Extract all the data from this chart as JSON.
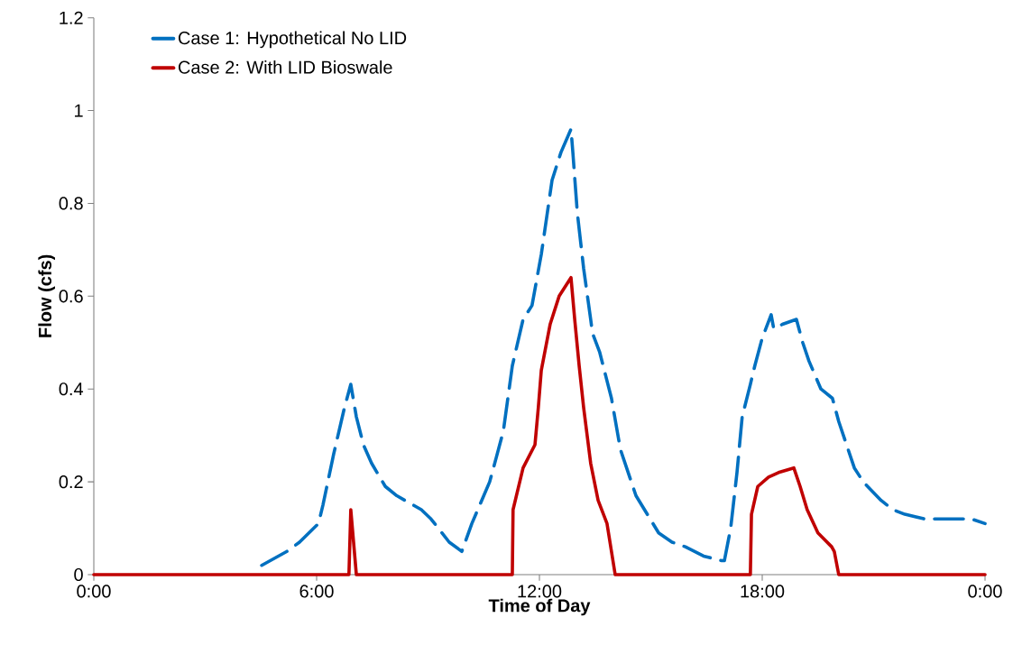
{
  "chart_data": {
    "type": "line",
    "xlabel": "Time of Day",
    "ylabel": "Flow (cfs)",
    "xlim": [
      0,
      24
    ],
    "ylim": [
      0,
      1.2
    ],
    "xticks": [
      {
        "value": 0,
        "label": "0:00"
      },
      {
        "value": 6,
        "label": "6:00"
      },
      {
        "value": 12,
        "label": "12:00"
      },
      {
        "value": 18,
        "label": "18:00"
      },
      {
        "value": 24,
        "label": "0:00"
      }
    ],
    "yticks": [
      0,
      0.2,
      0.4,
      0.6,
      0.8,
      1,
      1.2
    ],
    "grid": false,
    "legend": "top left",
    "marker": "none",
    "series": [
      {
        "name": "Case 1: Hypothetical No LID",
        "color": "#0070c0",
        "line_style": "dashed",
        "x": [
          4.52,
          5.2,
          5.54,
          6.05,
          6.17,
          6.46,
          6.75,
          6.92,
          7.07,
          7.26,
          7.48,
          7.85,
          8.16,
          8.82,
          9.08,
          9.57,
          9.91,
          10.18,
          10.66,
          10.83,
          11.03,
          11.27,
          11.56,
          11.8,
          12.05,
          12.34,
          12.58,
          12.85,
          12.9,
          13.02,
          13.19,
          13.38,
          13.43,
          13.62,
          13.94,
          14.18,
          14.6,
          15.21,
          15.57,
          15.93,
          16.42,
          16.91,
          16.98,
          17.15,
          17.32,
          17.46,
          17.68,
          17.8,
          18.0,
          18.24,
          18.31,
          18.56,
          18.92,
          19.09,
          19.26,
          19.58,
          19.89,
          20.06,
          20.48,
          20.72,
          21.2,
          21.52,
          21.84,
          22.37,
          23.05,
          23.63,
          24
        ],
        "values": [
          0.02,
          0.05,
          0.07,
          0.11,
          0.15,
          0.26,
          0.36,
          0.41,
          0.34,
          0.28,
          0.24,
          0.19,
          0.17,
          0.14,
          0.12,
          0.07,
          0.05,
          0.11,
          0.2,
          0.25,
          0.31,
          0.45,
          0.55,
          0.58,
          0.69,
          0.85,
          0.91,
          0.96,
          0.91,
          0.78,
          0.66,
          0.55,
          0.52,
          0.48,
          0.38,
          0.27,
          0.17,
          0.09,
          0.07,
          0.06,
          0.04,
          0.03,
          0.03,
          0.1,
          0.22,
          0.34,
          0.41,
          0.45,
          0.51,
          0.56,
          0.53,
          0.54,
          0.55,
          0.5,
          0.46,
          0.4,
          0.38,
          0.33,
          0.23,
          0.2,
          0.16,
          0.14,
          0.13,
          0.12,
          0.12,
          0.12,
          0.11
        ]
      },
      {
        "name": "Case 2: With LID Bioswale",
        "color": "#c00000",
        "line_style": "solid",
        "x": [
          0,
          6.87,
          6.92,
          7.07,
          11.27,
          11.29,
          11.56,
          11.88,
          11.97,
          12.05,
          12.29,
          12.53,
          12.85,
          12.95,
          13.07,
          13.19,
          13.38,
          13.58,
          13.82,
          14.04,
          17.68,
          17.71,
          17.88,
          18.17,
          18.44,
          18.85,
          19.02,
          19.21,
          19.5,
          19.87,
          19.94,
          20.06,
          24
        ],
        "values": [
          0,
          0,
          0.14,
          0,
          0,
          0.14,
          0.23,
          0.28,
          0.36,
          0.44,
          0.54,
          0.6,
          0.64,
          0.55,
          0.45,
          0.36,
          0.24,
          0.16,
          0.11,
          0,
          0,
          0.13,
          0.19,
          0.21,
          0.22,
          0.23,
          0.19,
          0.14,
          0.09,
          0.06,
          0.05,
          0,
          0
        ]
      }
    ]
  }
}
